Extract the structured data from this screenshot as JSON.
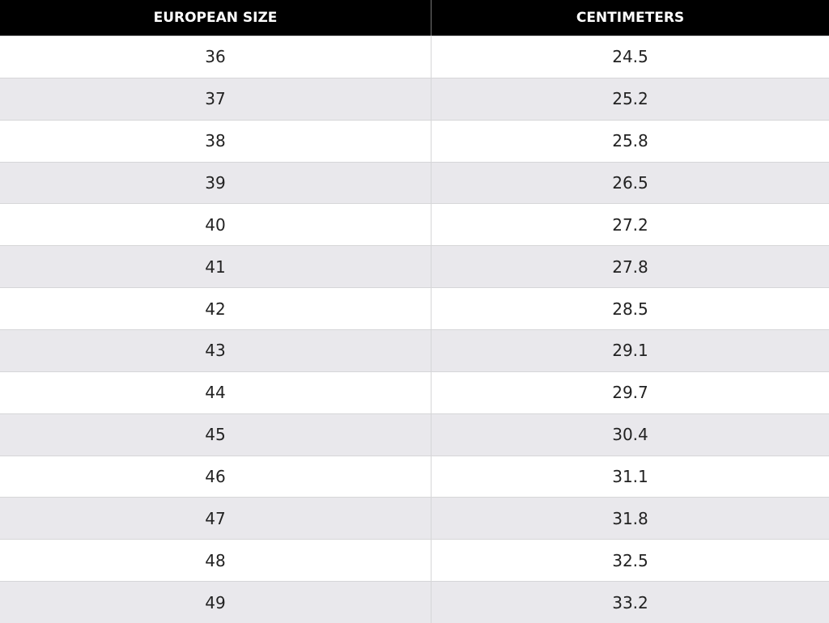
{
  "table": {
    "header": [
      "EUROPEAN SIZE",
      "CENTIMETERS"
    ],
    "rows": [
      [
        "36",
        "24.5"
      ],
      [
        "37",
        "25.2"
      ],
      [
        "38",
        "25.8"
      ],
      [
        "39",
        "26.5"
      ],
      [
        "40",
        "27.2"
      ],
      [
        "41",
        "27.8"
      ],
      [
        "42",
        "28.5"
      ],
      [
        "43",
        "29.1"
      ],
      [
        "44",
        "29.7"
      ],
      [
        "45",
        "30.4"
      ],
      [
        "46",
        "31.1"
      ],
      [
        "47",
        "31.8"
      ],
      [
        "48",
        "32.5"
      ],
      [
        "49",
        "33.2"
      ]
    ]
  }
}
